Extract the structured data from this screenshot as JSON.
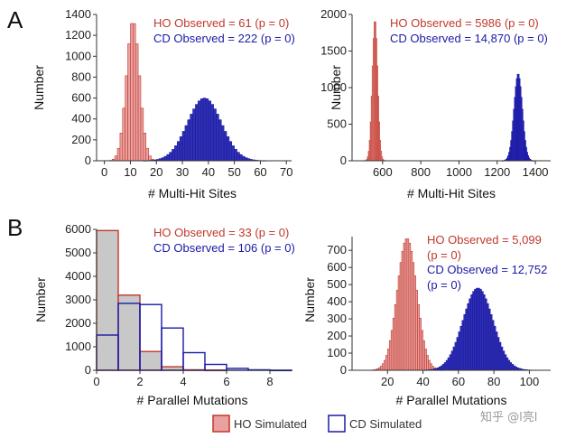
{
  "panel_labels": [
    "A",
    "B"
  ],
  "colors": {
    "ho": "#c0392b",
    "ho_fill": "#e8a0a0",
    "cd": "#1a1aa8",
    "gray_fill": "#c8c8c8"
  },
  "legend": {
    "ho": "HO Simulated",
    "cd": "CD Simulated"
  },
  "watermark": "知乎 @l亮l",
  "chart_data": [
    {
      "id": "A1",
      "type": "bar",
      "title": "",
      "xlabel": "# Multi-Hit Sites",
      "ylabel": "Number",
      "xlim": [
        -3,
        72
      ],
      "ylim": [
        0,
        1400
      ],
      "xticks": [
        0,
        10,
        20,
        30,
        40,
        50,
        60,
        70
      ],
      "yticks": [
        0,
        200,
        400,
        600,
        800,
        1000,
        1200,
        1400
      ],
      "annotations": [
        {
          "text": "HO Observed = 61   (p = 0)",
          "series": "ho"
        },
        {
          "text": "CD Observed = 222 (p = 0)",
          "series": "cd"
        }
      ],
      "series": [
        {
          "name": "HO Simulated",
          "style": "ho",
          "bin_width": 1,
          "dist": {
            "mean": 11,
            "sd": 2.5,
            "peak": 1340
          }
        },
        {
          "name": "CD Simulated",
          "style": "cd",
          "bin_width": 1,
          "dist": {
            "mean": 38.5,
            "sd": 6.5,
            "peak": 600
          }
        }
      ]
    },
    {
      "id": "A2",
      "type": "bar",
      "title": "",
      "xlabel": "# Multi-Hit Sites",
      "ylabel": "Number",
      "xlim": [
        440,
        1480
      ],
      "ylim": [
        0,
        2000
      ],
      "xticks": [
        600,
        800,
        1000,
        1200,
        1400
      ],
      "yticks": [
        0,
        500,
        1000,
        1500,
        2000
      ],
      "annotations": [
        {
          "text": "HO Observed = 5986 (p = 0)",
          "series": "ho"
        },
        {
          "text": "CD Observed = 14,870 (p = 0)",
          "series": "cd"
        }
      ],
      "series": [
        {
          "name": "HO Simulated",
          "style": "ho",
          "bin_width": 5,
          "dist": {
            "mean": 560,
            "sd": 14,
            "peak": 1930
          }
        },
        {
          "name": "CD Simulated",
          "style": "cd",
          "bin_width": 5,
          "dist": {
            "mean": 1310,
            "sd": 22,
            "peak": 1190
          }
        }
      ]
    },
    {
      "id": "B1",
      "type": "bar",
      "title": "",
      "xlabel": "# Parallel Mutations",
      "ylabel": "Number",
      "xlim": [
        0,
        9
      ],
      "ylim": [
        0,
        6000
      ],
      "xticks": [
        0,
        2,
        4,
        6,
        8
      ],
      "yticks": [
        0,
        1000,
        2000,
        3000,
        4000,
        5000,
        6000
      ],
      "annotations": [
        {
          "text": "HO Observed = 33   (p = 0)",
          "series": "ho"
        },
        {
          "text": "CD Observed = 106 (p = 0)",
          "series": "cd"
        }
      ],
      "series": [
        {
          "name": "HO Simulated",
          "style": "gray",
          "bin_width": 1,
          "x": [
            0,
            1,
            2,
            3,
            4,
            5,
            6,
            7,
            8
          ],
          "values": [
            5950,
            3200,
            800,
            150,
            20,
            5,
            0,
            0,
            0
          ]
        },
        {
          "name": "CD Simulated",
          "style": "cd_open",
          "bin_width": 1,
          "x": [
            0,
            1,
            2,
            3,
            4,
            5,
            6,
            7,
            8
          ],
          "values": [
            1500,
            2850,
            2800,
            1800,
            750,
            250,
            80,
            20,
            5
          ]
        }
      ]
    },
    {
      "id": "B2",
      "type": "bar",
      "title": "",
      "xlabel": "# Parallel Mutations",
      "ylabel": "Number",
      "xlim": [
        0,
        112
      ],
      "ylim": [
        0,
        780
      ],
      "xticks": [
        20,
        40,
        60,
        80,
        100
      ],
      "yticks": [
        0,
        100,
        200,
        300,
        400,
        500,
        600,
        700
      ],
      "annotations": [
        {
          "text": "HO Observed = 5,099",
          "series": "ho"
        },
        {
          "text": "(p = 0)",
          "series": "ho"
        },
        {
          "text": "CD Observed = 12,752",
          "series": "cd"
        },
        {
          "text": "(p = 0)",
          "series": "cd"
        }
      ],
      "series": [
        {
          "name": "HO Simulated",
          "style": "ho",
          "bin_width": 1,
          "dist": {
            "mean": 31,
            "sd": 5.5,
            "peak": 770
          }
        },
        {
          "name": "CD Simulated",
          "style": "cd",
          "bin_width": 1,
          "dist": {
            "mean": 71,
            "sd": 8.5,
            "peak": 480
          }
        }
      ]
    }
  ]
}
